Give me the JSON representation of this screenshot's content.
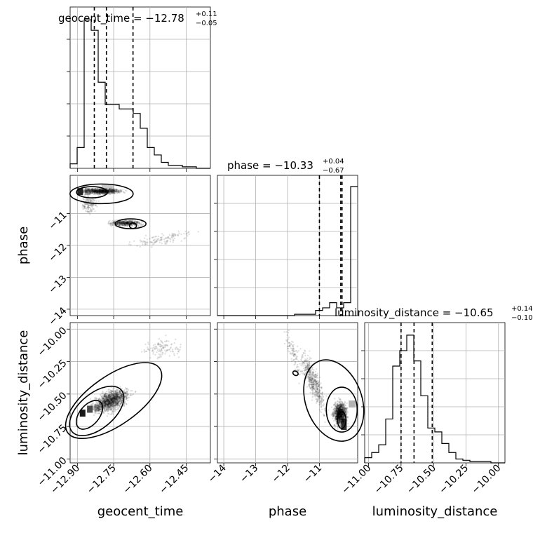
{
  "chart_data": {
    "type": "corner",
    "parameters": [
      "geocent_time",
      "phase",
      "luminosity_distance"
    ],
    "titles": [
      {
        "param": "geocent_time",
        "text": "geocent_time = −12.78",
        "plus": "+0.11",
        "minus": "−0.05"
      },
      {
        "param": "phase",
        "text": "phase = −10.33",
        "plus": "+0.04",
        "minus": "−0.67"
      },
      {
        "param": "luminosity_distance",
        "text": "luminosity_distance = −10.65",
        "plus": "+0.14",
        "minus": "−0.10"
      }
    ],
    "axis_labels": {
      "x": [
        "geocent_time",
        "phase",
        "luminosity_distance"
      ],
      "y": [
        "phase",
        "luminosity_distance"
      ]
    },
    "ranges": {
      "geocent_time": [
        -12.93,
        -12.35
      ],
      "phase": [
        -14.2,
        -9.8
      ],
      "luminosity_distance": [
        -11.03,
        -9.95
      ]
    },
    "ticks": {
      "geocent_time": {
        "values": [
          -12.9,
          -12.75,
          -12.6,
          -12.45
        ],
        "labels": [
          "−12.90",
          "−12.75",
          "−12.60",
          "−12.45"
        ]
      },
      "phase": {
        "values": [
          -14,
          -13,
          -12,
          -11
        ],
        "labels": [
          "−14",
          "−13",
          "−12",
          "−11"
        ]
      },
      "luminosity_distance": {
        "values": [
          -11.0,
          -10.75,
          -10.5,
          -10.25,
          -10.0
        ],
        "labels": [
          "−11.00",
          "−10.75",
          "−10.50",
          "−10.25",
          "−10.00"
        ]
      }
    },
    "quantiles": {
      "geocent_time": [
        -12.83,
        -12.78,
        -12.67
      ],
      "phase": [
        -11.0,
        -10.33,
        -10.29
      ],
      "luminosity_distance": [
        -10.75,
        -10.65,
        -10.51
      ]
    },
    "histograms": {
      "geocent_time": {
        "edges_start": -12.93,
        "bin_width": 0.029,
        "counts": [
          0.03,
          0.14,
          1.0,
          0.93,
          0.58,
          0.43,
          0.43,
          0.4,
          0.4,
          0.37,
          0.27,
          0.14,
          0.09,
          0.04,
          0.02,
          0.02,
          0.01,
          0.01,
          0,
          0
        ]
      },
      "phase": {
        "edges_start": -14.2,
        "bin_width": 0.22,
        "counts": [
          0,
          0,
          0,
          0,
          0,
          0,
          0,
          0,
          0,
          0,
          0,
          0.01,
          0.01,
          0.01,
          0.04,
          0.06,
          0.1,
          0.06,
          0.1,
          1.0
        ]
      },
      "luminosity_distance": {
        "edges_start": -11.03,
        "bin_width": 0.054,
        "counts": [
          0.04,
          0.08,
          0.14,
          0.34,
          0.75,
          0.87,
          0.99,
          0.79,
          0.52,
          0.27,
          0.24,
          0.15,
          0.08,
          0.03,
          0.02,
          0.01,
          0.01,
          0.01,
          0.0,
          0.0
        ]
      }
    },
    "grid": true
  }
}
